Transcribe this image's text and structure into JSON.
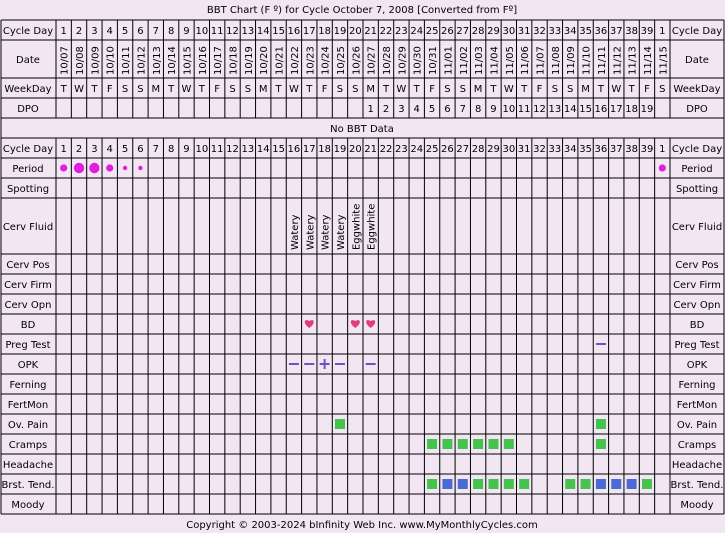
{
  "title": "BBT Chart (F º) for Cycle October 7, 2008  [Converted from Fº]",
  "footer": "Copyright © 2003-2024 bInfinity Web Inc.    www.MyMonthlyCycles.com",
  "no_data_text": "No BBT Data",
  "colors": {
    "background": "#f3e6f3",
    "grid_line": "#000000",
    "period_dot": "#e020e0",
    "heart": "#e0407a",
    "opk_line": "#7050c8",
    "green_square": "#44c44c",
    "blue_square": "#4a6ad4"
  },
  "chart_data": {
    "type": "table",
    "columns": 41,
    "row_labels": {
      "cycle_day": "Cycle Day",
      "date": "Date",
      "weekday": "WeekDay",
      "dpo": "DPO",
      "period": "Period",
      "spotting": "Spotting",
      "cerv_fluid": "Cerv Fluid",
      "cerv_pos": "Cerv Pos",
      "cerv_firm": "Cerv Firm",
      "cerv_opn": "Cerv Opn",
      "bd": "BD",
      "preg_test": "Preg Test",
      "opk": "OPK",
      "ferning": "Ferning",
      "fertmon": "FertMon",
      "ov_pain": "Ov. Pain",
      "cramps": "Cramps",
      "headache": "Headache",
      "brst_tend": "Brst. Tend.",
      "moody": "Moody"
    },
    "cycle_days": [
      "1",
      "2",
      "3",
      "4",
      "5",
      "6",
      "7",
      "8",
      "9",
      "10",
      "11",
      "12",
      "13",
      "14",
      "15",
      "16",
      "17",
      "18",
      "19",
      "20",
      "21",
      "22",
      "23",
      "24",
      "25",
      "26",
      "27",
      "28",
      "29",
      "30",
      "31",
      "32",
      "33",
      "34",
      "35",
      "36",
      "37",
      "38",
      "39",
      "1"
    ],
    "dates": [
      "10/07",
      "10/08",
      "10/09",
      "10/10",
      "10/11",
      "10/12",
      "10/13",
      "10/14",
      "10/15",
      "10/16",
      "10/17",
      "10/18",
      "10/19",
      "10/20",
      "10/21",
      "10/22",
      "10/23",
      "10/24",
      "10/25",
      "10/26",
      "10/27",
      "10/28",
      "10/29",
      "10/30",
      "10/31",
      "11/01",
      "11/02",
      "11/03",
      "11/04",
      "11/05",
      "11/06",
      "11/07",
      "11/08",
      "11/09",
      "11/10",
      "11/11",
      "11/12",
      "11/13",
      "11/14",
      "11/15"
    ],
    "weekdays": [
      "T",
      "W",
      "T",
      "F",
      "S",
      "S",
      "M",
      "T",
      "W",
      "T",
      "F",
      "S",
      "S",
      "M",
      "T",
      "W",
      "T",
      "F",
      "S",
      "S",
      "M",
      "T",
      "W",
      "T",
      "F",
      "S",
      "S",
      "M",
      "T",
      "W",
      "T",
      "F",
      "S",
      "S",
      "M",
      "T",
      "W",
      "T",
      "F",
      "S"
    ],
    "dpo": [
      "",
      "",
      "",
      "",
      "",
      "",
      "",
      "",
      "",
      "",
      "",
      "",
      "",
      "",
      "",
      "",
      "",
      "",
      "",
      "",
      "1",
      "2",
      "3",
      "4",
      "5",
      "6",
      "7",
      "8",
      "9",
      "10",
      "11",
      "12",
      "13",
      "14",
      "15",
      "16",
      "17",
      "18",
      "19",
      ""
    ],
    "period": [
      {
        "day_index": 0,
        "size": "medium"
      },
      {
        "day_index": 1,
        "size": "heavy"
      },
      {
        "day_index": 2,
        "size": "heavy"
      },
      {
        "day_index": 3,
        "size": "medium"
      },
      {
        "day_index": 4,
        "size": "light"
      },
      {
        "day_index": 5,
        "size": "light"
      },
      {
        "day_index": 39,
        "size": "medium"
      }
    ],
    "cerv_fluid": [
      {
        "day_index": 15,
        "value": "Watery"
      },
      {
        "day_index": 16,
        "value": "Watery"
      },
      {
        "day_index": 17,
        "value": "Watery"
      },
      {
        "day_index": 18,
        "value": "Watery"
      },
      {
        "day_index": 19,
        "value": "Eggwhite"
      },
      {
        "day_index": 20,
        "value": "Eggwhite"
      }
    ],
    "bd": [
      16,
      19,
      20
    ],
    "preg_test": [
      {
        "day_index": 35,
        "result": "negative"
      }
    ],
    "opk": [
      {
        "day_index": 15,
        "result": "negative"
      },
      {
        "day_index": 16,
        "result": "negative"
      },
      {
        "day_index": 17,
        "result": "positive"
      },
      {
        "day_index": 18,
        "result": "negative"
      },
      {
        "day_index": 20,
        "result": "negative"
      }
    ],
    "ov_pain": [
      {
        "day_index": 18,
        "color": "green"
      },
      {
        "day_index": 35,
        "color": "green"
      }
    ],
    "cramps": [
      {
        "day_index": 24,
        "color": "green"
      },
      {
        "day_index": 25,
        "color": "green"
      },
      {
        "day_index": 26,
        "color": "green"
      },
      {
        "day_index": 27,
        "color": "green"
      },
      {
        "day_index": 28,
        "color": "green"
      },
      {
        "day_index": 29,
        "color": "green"
      },
      {
        "day_index": 35,
        "color": "green"
      }
    ],
    "brst_tend": [
      {
        "day_index": 24,
        "color": "green"
      },
      {
        "day_index": 25,
        "color": "blue"
      },
      {
        "day_index": 26,
        "color": "blue"
      },
      {
        "day_index": 27,
        "color": "green"
      },
      {
        "day_index": 28,
        "color": "green"
      },
      {
        "day_index": 29,
        "color": "green"
      },
      {
        "day_index": 30,
        "color": "green"
      },
      {
        "day_index": 33,
        "color": "green"
      },
      {
        "day_index": 34,
        "color": "green"
      },
      {
        "day_index": 35,
        "color": "blue"
      },
      {
        "day_index": 36,
        "color": "blue"
      },
      {
        "day_index": 37,
        "color": "blue"
      },
      {
        "day_index": 38,
        "color": "green"
      }
    ]
  }
}
